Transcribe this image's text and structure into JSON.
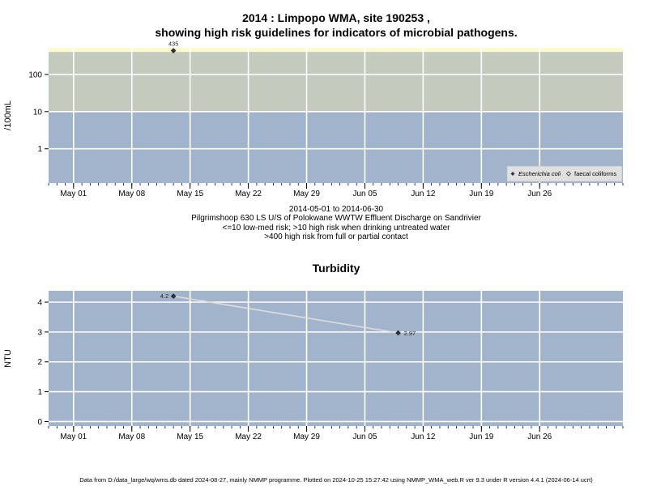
{
  "page": {
    "title_line1": "2014 : Limpopo WMA, site 190253 ,",
    "title_line2": "showing high risk guidelines for indicators of microbial pathogens.",
    "date_range": "2014-05-01 to 2014-06-30",
    "site_description": "Pilgrimshoop 630 LS U/S of Polokwane WWTW Effluent Discharge on Sandrivier",
    "guideline_1": "<=10 low-med risk; >10 high risk when drinking untreated water",
    "guideline_2": ">400 high risk from full or partial contact",
    "footer": "Data from D:/data_large/wq/wms.db dated 2024-08-27, mainly NMMP programme. Plotted on 2024-10-25 15:27:42 using NMMP_WMA_web.R ver 9.3 under R version 4.4.1 (2024-06-14 ucrt)"
  },
  "colors": {
    "panel_bg": "#a2b4cc",
    "band_mid": "#c2cbbd",
    "band_high": "#fffaca",
    "grid": "#ffffff",
    "line": "#dddddd",
    "point": "#333333",
    "legend_bg": "#e0e0e0"
  },
  "chart_data": [
    {
      "type": "scatter",
      "ylabel": "/100mL",
      "y_scale": "log10",
      "ylim": [
        0.12,
        520
      ],
      "xlim": [
        "2014-04-28",
        "2014-07-06"
      ],
      "x_ticks": [
        {
          "date": "2014-05-01",
          "label": "May 01"
        },
        {
          "date": "2014-05-08",
          "label": "May 08"
        },
        {
          "date": "2014-05-15",
          "label": "May 15"
        },
        {
          "date": "2014-05-22",
          "label": "May 22"
        },
        {
          "date": "2014-05-29",
          "label": "May 29"
        },
        {
          "date": "2014-06-05",
          "label": "Jun 05"
        },
        {
          "date": "2014-06-12",
          "label": "Jun 12"
        },
        {
          "date": "2014-06-19",
          "label": "Jun 19"
        },
        {
          "date": "2014-06-26",
          "label": "Jun 26"
        }
      ],
      "y_ticks": [
        {
          "value": 1,
          "label": "1"
        },
        {
          "value": 10,
          "label": "10"
        },
        {
          "value": 100,
          "label": "100"
        }
      ],
      "bands": [
        {
          "from": 0.12,
          "to": 10,
          "color": "#a2b4cc"
        },
        {
          "from": 10,
          "to": 400,
          "color": "#c2cbbd"
        },
        {
          "from": 400,
          "to": 520,
          "color": "#fffaca"
        }
      ],
      "grid": true,
      "legend_position": "bottom-right",
      "series": [
        {
          "name": "Escherichia coli",
          "marker": "filled-diamond",
          "points": [
            {
              "x": "2014-05-13",
              "y": 435,
              "label": "435"
            }
          ]
        },
        {
          "name": "faecal coliforms",
          "marker": "open-diamond",
          "points": []
        }
      ]
    },
    {
      "type": "line",
      "title": "Turbidity",
      "ylabel": "NTU",
      "ylim": [
        -0.15,
        4.38
      ],
      "xlim": [
        "2014-04-28",
        "2014-07-06"
      ],
      "x_ticks": [
        {
          "date": "2014-05-01",
          "label": "May 01"
        },
        {
          "date": "2014-05-08",
          "label": "May 08"
        },
        {
          "date": "2014-05-15",
          "label": "May 15"
        },
        {
          "date": "2014-05-22",
          "label": "May 22"
        },
        {
          "date": "2014-05-29",
          "label": "May 29"
        },
        {
          "date": "2014-06-05",
          "label": "Jun 05"
        },
        {
          "date": "2014-06-12",
          "label": "Jun 12"
        },
        {
          "date": "2014-06-19",
          "label": "Jun 19"
        },
        {
          "date": "2014-06-26",
          "label": "Jun 26"
        }
      ],
      "y_ticks": [
        {
          "value": 0,
          "label": "0"
        },
        {
          "value": 1,
          "label": "1"
        },
        {
          "value": 2,
          "label": "2"
        },
        {
          "value": 3,
          "label": "3"
        },
        {
          "value": 4,
          "label": "4"
        }
      ],
      "grid": true,
      "series": [
        {
          "points": [
            {
              "x": "2014-05-13",
              "y": 4.2,
              "label": "4.2",
              "label_side": "left"
            },
            {
              "x": "2014-06-09",
              "y": 2.97,
              "label": "2.97",
              "label_side": "right"
            }
          ]
        }
      ]
    }
  ]
}
